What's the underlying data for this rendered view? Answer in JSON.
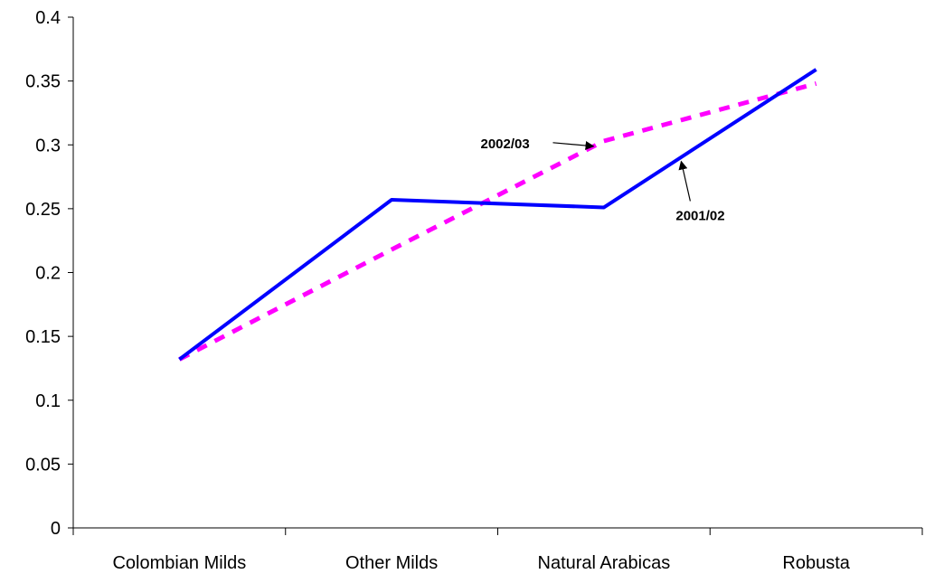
{
  "chart_data": {
    "type": "line",
    "title": "",
    "xlabel": "",
    "ylabel": "",
    "categories": [
      "Colombian Milds",
      "Other Milds",
      "Natural Arabicas",
      "Robusta"
    ],
    "ylim": [
      0,
      0.4
    ],
    "yticks": [
      "0",
      "0.05",
      "0.1",
      "0.15",
      "0.2",
      "0.25",
      "0.3",
      "0.35",
      "0.4"
    ],
    "grid": false,
    "legend": "none",
    "series": [
      {
        "key": "s2001",
        "label": "2001/02",
        "values": [
          0.132,
          0.257,
          0.251,
          0.359
        ],
        "color": "#0000ff",
        "style": "solid"
      },
      {
        "key": "s2002",
        "label": "2002/03",
        "values": [
          0.132,
          0.218,
          0.303,
          0.348
        ],
        "color": "#ff00ff",
        "style": "dashed"
      }
    ],
    "annotations": [
      {
        "text": "2002/03",
        "series": "s2002",
        "points_to": "between Other Milds and Natural Arabicas"
      },
      {
        "text": "2001/02",
        "series": "s2001",
        "points_to": "between Natural Arabicas and Robusta"
      }
    ]
  }
}
